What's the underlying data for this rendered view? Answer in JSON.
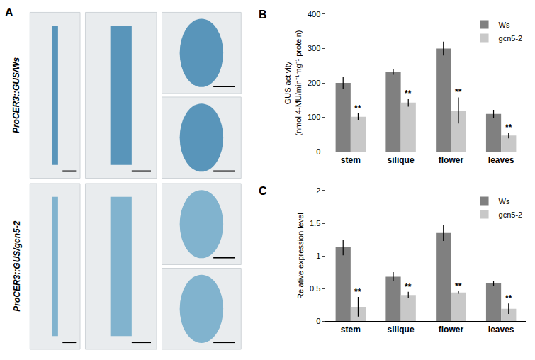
{
  "panel_a": {
    "panel": "A",
    "row_labels": [
      "ProCER3::GUS/Ws",
      "ProCER3::GUS/gcn5-2"
    ]
  },
  "chart_data": [
    {
      "panel": "B",
      "type": "bar",
      "categories": [
        "stem",
        "silique",
        "flower",
        "leaves"
      ],
      "series": [
        {
          "name": "Ws",
          "color": "#808080",
          "values": [
            200,
            232,
            300,
            110
          ],
          "errors": [
            18,
            8,
            20,
            12
          ]
        },
        {
          "name": "gcn5-2",
          "color": "#c8c8c8",
          "values": [
            102,
            143,
            120,
            47
          ],
          "errors": [
            10,
            12,
            38,
            8
          ]
        }
      ],
      "y_label": [
        "GUS activity",
        "(nmol 4-MU/min⁻¹mg⁻¹ protein)"
      ],
      "ylim": [
        0,
        400
      ],
      "yticks": [
        0,
        100,
        200,
        300,
        400
      ],
      "legend": "upper right",
      "annotations": [
        {
          "category": "stem",
          "series": "gcn5-2",
          "text": "**"
        },
        {
          "category": "silique",
          "series": "gcn5-2",
          "text": "**"
        },
        {
          "category": "flower",
          "series": "gcn5-2",
          "text": "**"
        },
        {
          "category": "leaves",
          "series": "gcn5-2",
          "text": "**"
        }
      ]
    },
    {
      "panel": "C",
      "type": "bar",
      "categories": [
        "stem",
        "silique",
        "flower",
        "leaves"
      ],
      "series": [
        {
          "name": "Ws",
          "color": "#808080",
          "values": [
            1.13,
            0.68,
            1.35,
            0.58
          ],
          "errors": [
            0.12,
            0.07,
            0.12,
            0.04
          ]
        },
        {
          "name": "gcn5-2",
          "color": "#c8c8c8",
          "values": [
            0.22,
            0.4,
            0.44,
            0.19
          ],
          "errors": [
            0.15,
            0.05,
            0.02,
            0.08
          ]
        }
      ],
      "y_label": [
        "Relative expression level"
      ],
      "ylim": [
        0,
        2
      ],
      "yticks": [
        0,
        0.5,
        1,
        1.5,
        2
      ],
      "legend": "upper right",
      "annotations": [
        {
          "category": "stem",
          "series": "gcn5-2",
          "text": "**"
        },
        {
          "category": "silique",
          "series": "gcn5-2",
          "text": "**"
        },
        {
          "category": "flower",
          "series": "gcn5-2",
          "text": "**"
        },
        {
          "category": "leaves",
          "series": "gcn5-2",
          "text": "**"
        }
      ]
    }
  ]
}
